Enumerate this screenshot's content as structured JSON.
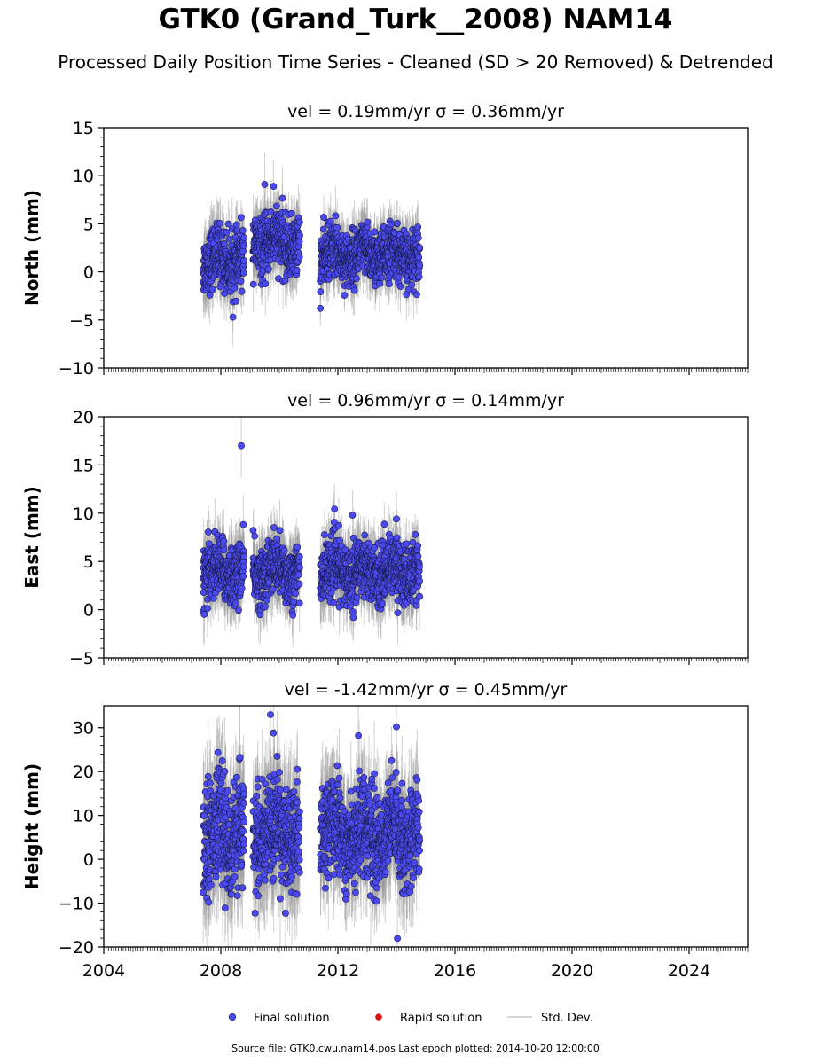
{
  "title": "GTK0 (Grand_Turk__2008) NAM14",
  "subtitle": "Processed Daily Position Time Series - Cleaned (SD > 20 Removed) & Detrended",
  "footer": "Source file: GTK0.cwu.nam14.pos  Last epoch plotted: 2014-10-20 12:00:00",
  "colors": {
    "final": "#4a4af0",
    "rapid": "#dd1111",
    "stddev": "#c8c8c8"
  },
  "chart_data": [
    {
      "type": "scatter",
      "title": "vel = 0.19mm/yr   σ = 0.36mm/yr",
      "ylabel": "North (mm)",
      "xlim": [
        2004,
        2026
      ],
      "ylim": [
        -10,
        15
      ],
      "yticks": [
        -10,
        -5,
        0,
        5,
        10,
        15
      ],
      "segments": [
        {
          "x": [
            2007.4,
            2008.8
          ],
          "y_center": 1.2,
          "y_spread": 2.0
        },
        {
          "x": [
            2009.1,
            2010.7
          ],
          "y_center": 3.0,
          "y_spread": 2.0
        },
        {
          "x": [
            2011.4,
            2014.8
          ],
          "y_center": 1.8,
          "y_spread": 1.8
        }
      ],
      "outliers": [
        {
          "x": 2009.5,
          "y": 9.1
        },
        {
          "x": 2009.8,
          "y": 8.9
        },
        {
          "x": 2011.4,
          "y": -3.8
        }
      ]
    },
    {
      "type": "scatter",
      "title": "vel = 0.96mm/yr   σ = 0.14mm/yr",
      "ylabel": "East (mm)",
      "xlim": [
        2004,
        2026
      ],
      "ylim": [
        -5,
        20
      ],
      "yticks": [
        -5,
        0,
        5,
        10,
        15,
        20
      ],
      "segments": [
        {
          "x": [
            2007.4,
            2008.8
          ],
          "y_center": 4.0,
          "y_spread": 2.0
        },
        {
          "x": [
            2009.1,
            2010.7
          ],
          "y_center": 4.0,
          "y_spread": 2.0
        },
        {
          "x": [
            2011.4,
            2014.8
          ],
          "y_center": 4.0,
          "y_spread": 2.0
        }
      ],
      "outliers": [
        {
          "x": 2008.7,
          "y": 17.0
        },
        {
          "x": 2012.5,
          "y": 9.8
        },
        {
          "x": 2014.0,
          "y": 9.4
        }
      ]
    },
    {
      "type": "scatter",
      "title": "vel = -1.42mm/yr   σ = 0.45mm/yr",
      "ylabel": "Height (mm)",
      "xlim": [
        2004,
        2026
      ],
      "ylim": [
        -20,
        35
      ],
      "yticks": [
        -20,
        -10,
        0,
        10,
        20,
        30
      ],
      "xticks": [
        2004,
        2008,
        2012,
        2016,
        2020,
        2024
      ],
      "segments": [
        {
          "x": [
            2007.4,
            2008.8
          ],
          "y_center": 6.0,
          "y_spread": 8.0
        },
        {
          "x": [
            2009.1,
            2010.7
          ],
          "y_center": 6.0,
          "y_spread": 8.0
        },
        {
          "x": [
            2011.4,
            2014.8
          ],
          "y_center": 6.0,
          "y_spread": 7.0
        }
      ],
      "outliers": [
        {
          "x": 2009.8,
          "y": 28.8
        },
        {
          "x": 2012.7,
          "y": 28.2
        },
        {
          "x": 2014.0,
          "y": 30.2
        }
      ]
    }
  ],
  "legend": {
    "placement": "bottom-center",
    "items": [
      {
        "label": "Final solution",
        "kind": "dot-blue"
      },
      {
        "label": "Rapid solution",
        "kind": "dot-red"
      },
      {
        "label": "Std. Dev.",
        "kind": "line-gray"
      }
    ]
  }
}
